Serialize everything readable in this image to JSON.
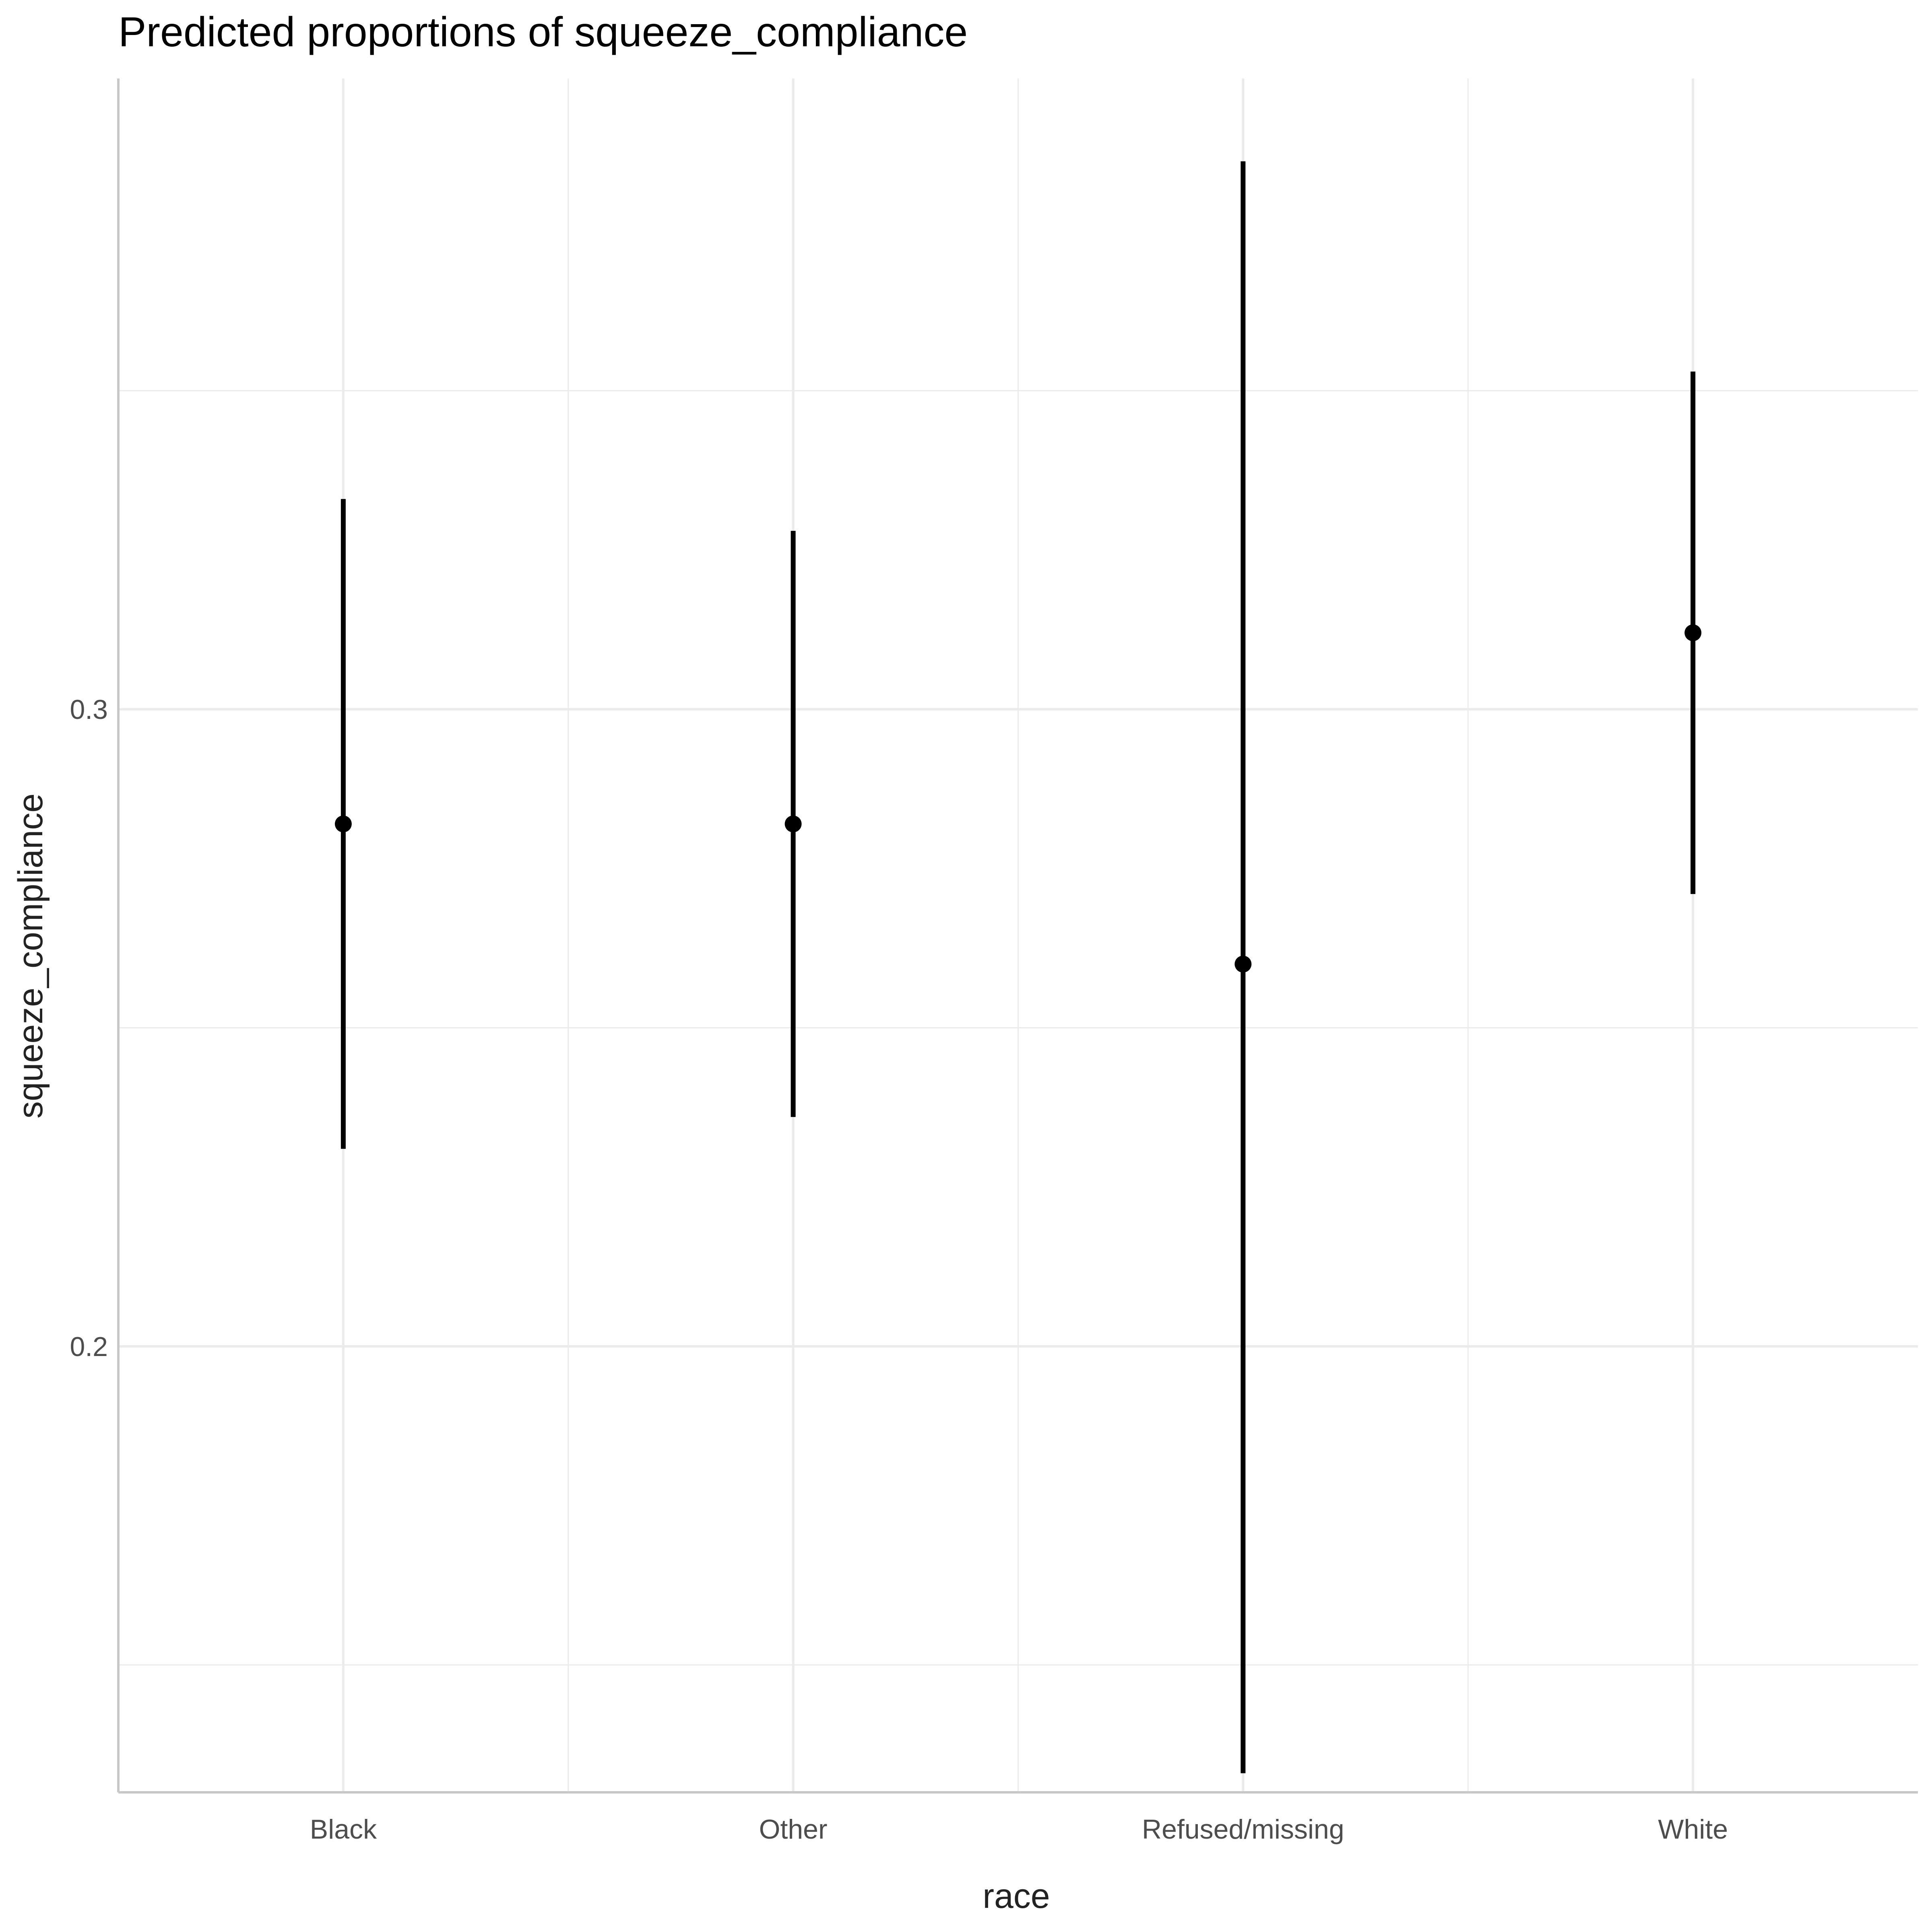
{
  "chart_data": {
    "type": "scatter",
    "subtype": "pointrange",
    "title": "Predicted proportions of squeeze_compliance",
    "xlabel": "race",
    "ylabel": "squeeze_compliance",
    "categories": [
      "Black",
      "Other",
      "Refused/missing",
      "White"
    ],
    "estimates": [
      0.282,
      0.282,
      0.26,
      0.312
    ],
    "lower": [
      0.231,
      0.236,
      0.133,
      0.271
    ],
    "upper": [
      0.333,
      0.328,
      0.386,
      0.353
    ],
    "ylim": [
      0.13,
      0.399
    ],
    "yticks": [
      0.2,
      0.3
    ],
    "ytick_labels": [
      "0.2",
      "0.3"
    ],
    "y_minor_gridlines": [
      0.15,
      0.25,
      0.35
    ],
    "grid": true,
    "colors": {
      "points": "#000000",
      "gridlines": "#ebebeb",
      "axis_lines": "#c8c8c8"
    }
  }
}
